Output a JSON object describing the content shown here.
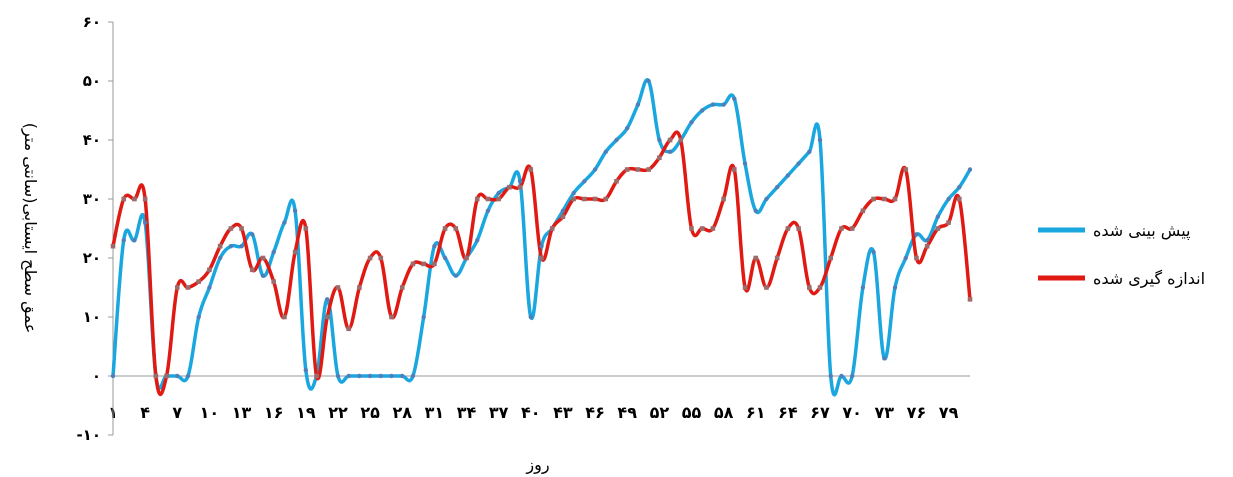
{
  "chart_data": {
    "type": "line",
    "xlabel": "روز",
    "ylabel": "عمق سطح ایستابی(سانتی متر)",
    "ylim": [
      -10,
      60
    ],
    "yticks": [
      -10,
      0,
      10,
      20,
      30,
      40,
      50,
      60
    ],
    "ytick_labels": [
      "-۱۰",
      "۰",
      "۱۰",
      "۲۰",
      "۳۰",
      "۴۰",
      "۵۰",
      "۶۰"
    ],
    "xlim": [
      1,
      81
    ],
    "xticks": [
      1,
      4,
      7,
      10,
      13,
      16,
      19,
      22,
      25,
      28,
      31,
      34,
      37,
      40,
      43,
      46,
      49,
      52,
      55,
      58,
      61,
      64,
      67,
      70,
      73,
      76,
      79
    ],
    "xtick_labels": [
      "۱",
      "۴",
      "۷",
      "۱۰",
      "۱۳",
      "۱۶",
      "۱۹",
      "۲۲",
      "۲۵",
      "۲۸",
      "۳۱",
      "۳۴",
      "۳۷",
      "۴۰",
      "۴۳",
      "۴۶",
      "۴۹",
      "۵۲",
      "۵۵",
      "۵۸",
      "۶۱",
      "۶۴",
      "۶۷",
      "۷۰",
      "۷۳",
      "۷۶",
      "۷۹"
    ],
    "grid": false,
    "legend_position": "right",
    "x": [
      1,
      2,
      3,
      4,
      5,
      6,
      7,
      8,
      9,
      10,
      11,
      12,
      13,
      14,
      15,
      16,
      17,
      18,
      19,
      20,
      21,
      22,
      23,
      24,
      25,
      26,
      27,
      28,
      29,
      30,
      31,
      32,
      33,
      34,
      35,
      36,
      37,
      38,
      39,
      40,
      41,
      42,
      43,
      44,
      45,
      46,
      47,
      48,
      49,
      50,
      51,
      52,
      53,
      54,
      55,
      56,
      57,
      58,
      59,
      60,
      61,
      62,
      63,
      64,
      65,
      66,
      67,
      68,
      69,
      70,
      71,
      72,
      73,
      74,
      75,
      76,
      77,
      78,
      79,
      80,
      81
    ],
    "series": [
      {
        "name": "پیش بینی شده",
        "color": "#1aa7e0",
        "values": [
          0,
          23,
          23,
          26,
          0,
          0,
          0,
          0,
          10,
          15,
          20,
          22,
          22,
          24,
          17,
          21,
          26,
          28,
          1,
          0,
          13,
          0,
          0,
          0,
          0,
          0,
          0,
          0,
          0,
          10,
          22,
          20,
          17,
          20,
          23,
          28,
          31,
          32,
          33,
          10,
          22,
          25,
          28,
          31,
          33,
          35,
          38,
          40,
          42,
          46,
          50,
          40,
          38,
          40,
          43,
          45,
          46,
          46,
          47,
          36,
          28,
          30,
          32,
          34,
          36,
          38,
          40,
          0,
          0,
          0,
          15,
          21,
          3,
          15,
          20,
          24,
          23,
          27,
          30,
          32,
          35
        ]
      },
      {
        "name": "اندازه گیری شده",
        "color": "#e01a12",
        "values": [
          22,
          30,
          30,
          30,
          0,
          0,
          15,
          15,
          16,
          18,
          22,
          25,
          25,
          18,
          20,
          16,
          10,
          21,
          25,
          0,
          10,
          15,
          8,
          15,
          20,
          20,
          10,
          15,
          19,
          19,
          19,
          25,
          25,
          20,
          30,
          30,
          30,
          32,
          32,
          35,
          20,
          25,
          27,
          30,
          30,
          30,
          30,
          33,
          35,
          35,
          35,
          37,
          40,
          40,
          25,
          25,
          25,
          30,
          35,
          15,
          20,
          15,
          20,
          25,
          25,
          15,
          15,
          20,
          25,
          25,
          28,
          30,
          30,
          30,
          35,
          20,
          22,
          25,
          26,
          30,
          13
        ]
      }
    ]
  }
}
